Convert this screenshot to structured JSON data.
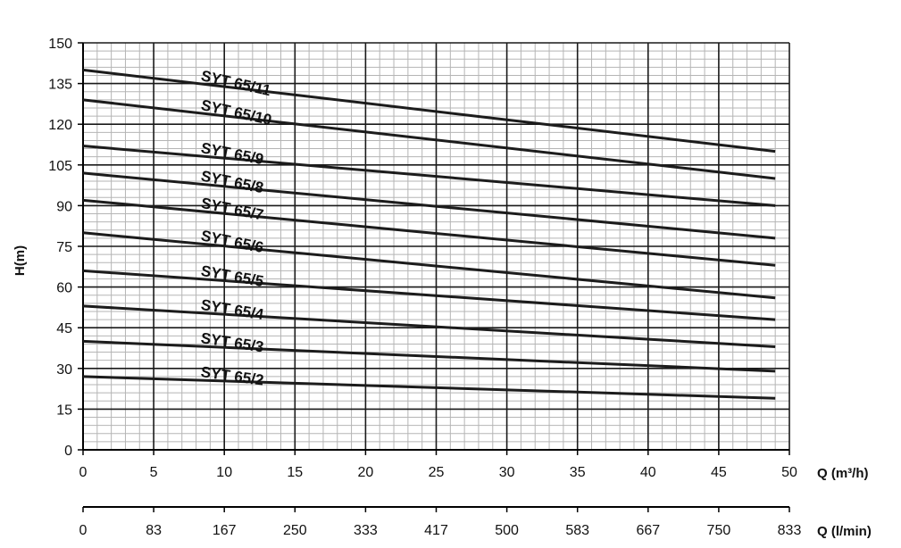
{
  "chart_data": {
    "type": "line",
    "title": "",
    "ylabel": "H(m)",
    "xlabel": "Q (m³/h)",
    "x2label": "Q (l/min)",
    "xlim": [
      0,
      50
    ],
    "ylim": [
      0,
      150
    ],
    "x_ticks": [
      "0",
      "5",
      "10",
      "15",
      "20",
      "25",
      "30",
      "35",
      "40",
      "45",
      "50"
    ],
    "x2_ticks": [
      "0",
      "83",
      "167",
      "250",
      "333",
      "417",
      "500",
      "583",
      "667",
      "750",
      "833"
    ],
    "y_ticks": [
      "0",
      "15",
      "30",
      "45",
      "60",
      "75",
      "90",
      "105",
      "120",
      "135",
      "150"
    ],
    "grid": true,
    "series": [
      {
        "name": "SYT 65/11",
        "x": [
          0,
          49
        ],
        "y": [
          140,
          110
        ]
      },
      {
        "name": "SYT 65/10",
        "x": [
          0,
          49
        ],
        "y": [
          129,
          100
        ]
      },
      {
        "name": "SYT 65/9",
        "x": [
          0,
          49
        ],
        "y": [
          112,
          90
        ]
      },
      {
        "name": "SYT 65/8",
        "x": [
          0,
          49
        ],
        "y": [
          102,
          78
        ]
      },
      {
        "name": "SYT 65/7",
        "x": [
          0,
          49
        ],
        "y": [
          92,
          68
        ]
      },
      {
        "name": "SYT 65/6",
        "x": [
          0,
          49
        ],
        "y": [
          80,
          56
        ]
      },
      {
        "name": "SYT 65/5",
        "x": [
          0,
          49
        ],
        "y": [
          66,
          48
        ]
      },
      {
        "name": "SYT 65/4",
        "x": [
          0,
          49
        ],
        "y": [
          53,
          38
        ]
      },
      {
        "name": "SYT 65/3",
        "x": [
          0,
          49
        ],
        "y": [
          40,
          29
        ]
      },
      {
        "name": "SYT 65/2",
        "x": [
          0,
          49
        ],
        "y": [
          27,
          19
        ]
      }
    ]
  }
}
